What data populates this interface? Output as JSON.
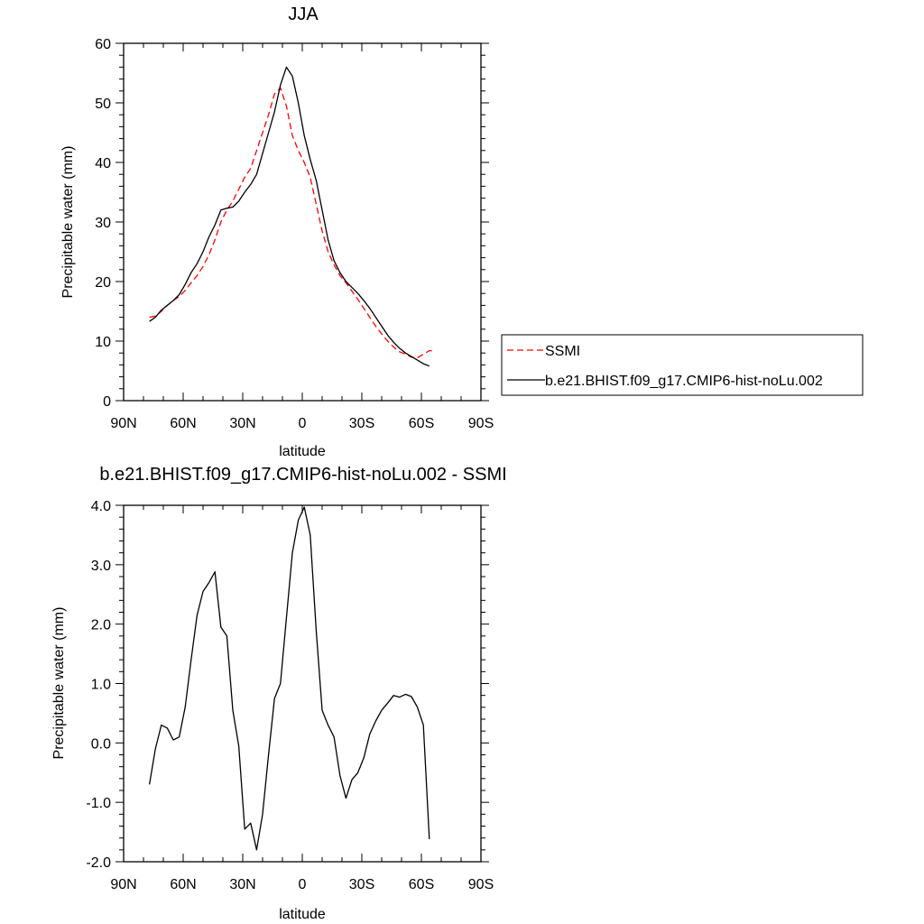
{
  "chart_data": [
    {
      "type": "line",
      "title": "JJA",
      "xlabel": "latitude",
      "ylabel": "Precipitable water (mm)",
      "xlim": [
        90,
        -90
      ],
      "ylim": [
        0,
        60
      ],
      "x_ticks": [
        90,
        60,
        30,
        0,
        -30,
        -60,
        -90
      ],
      "x_tick_labels": [
        "90N",
        "60N",
        "30N",
        "0",
        "30S",
        "60S",
        "90S"
      ],
      "y_ticks": [
        0,
        10,
        20,
        30,
        40,
        50,
        60
      ],
      "y_tick_labels": [
        "0",
        "10",
        "20",
        "30",
        "40",
        "50",
        "60"
      ],
      "grid": false,
      "legend_position": "right",
      "series": [
        {
          "name": "SSMI",
          "color": "#ff0000",
          "dash": "dashed",
          "x": [
            77,
            74,
            71,
            68,
            65,
            62,
            59,
            56,
            53,
            50,
            47,
            44,
            41,
            38,
            35,
            32,
            29,
            26,
            23,
            20,
            17,
            14,
            11,
            8,
            5,
            2,
            -1,
            -4,
            -7,
            -10,
            -13,
            -16,
            -19,
            -22,
            -25,
            -28,
            -31,
            -34,
            -37,
            -40,
            -43,
            -46,
            -49,
            -52,
            -55,
            -58,
            -61,
            -64,
            -67
          ],
          "y": [
            14.0,
            14.2,
            15.0,
            16.0,
            16.8,
            17.5,
            18.5,
            19.8,
            21.0,
            22.5,
            24.5,
            27.0,
            30.0,
            32.0,
            33.5,
            35.5,
            37.5,
            39.0,
            42.0,
            45.0,
            48.0,
            51.5,
            52.5,
            49.5,
            44.5,
            42.0,
            40.0,
            37.5,
            33.0,
            28.5,
            25.0,
            22.8,
            21.0,
            19.8,
            18.4,
            17.0,
            15.5,
            14.0,
            12.5,
            11.2,
            10.0,
            9.0,
            8.2,
            7.8,
            7.3,
            7.2,
            7.8,
            8.4,
            8.4
          ]
        },
        {
          "name": "b.e21.BHIST.f09_g17.CMIP6-hist-noLu.002",
          "color": "#000000",
          "dash": "solid",
          "x": [
            77,
            74,
            71,
            68,
            65,
            62,
            59,
            56,
            53,
            50,
            47,
            44,
            41,
            38,
            35,
            32,
            29,
            26,
            23,
            20,
            17,
            14,
            11,
            8,
            5,
            2,
            -1,
            -4,
            -7,
            -10,
            -13,
            -16,
            -19,
            -22,
            -25,
            -28,
            -31,
            -34,
            -37,
            -40,
            -43,
            -46,
            -49,
            -52,
            -55,
            -58,
            -61,
            -64
          ],
          "y": [
            13.3,
            14.0,
            15.2,
            16.0,
            16.8,
            17.8,
            19.5,
            21.5,
            23.0,
            25.0,
            27.5,
            29.5,
            32.0,
            32.3,
            32.5,
            33.5,
            35.0,
            36.3,
            38.0,
            41.5,
            45.0,
            48.5,
            53.0,
            56.0,
            54.5,
            50.0,
            44.5,
            40.5,
            37.0,
            32.0,
            27.0,
            23.5,
            21.5,
            20.0,
            19.0,
            18.0,
            16.8,
            15.5,
            14.0,
            12.5,
            11.0,
            9.8,
            8.8,
            8.0,
            7.4,
            6.8,
            6.2,
            5.8
          ]
        }
      ]
    },
    {
      "type": "line",
      "title": "b.e21.BHIST.f09_g17.CMIP6-hist-noLu.002 - SSMI",
      "xlabel": "latitude",
      "ylabel": "Precipitable water (mm)",
      "xlim": [
        90,
        -90
      ],
      "ylim": [
        -2,
        4
      ],
      "x_ticks": [
        90,
        60,
        30,
        0,
        -30,
        -60,
        -90
      ],
      "x_tick_labels": [
        "90N",
        "60N",
        "30N",
        "0",
        "30S",
        "60S",
        "90S"
      ],
      "y_ticks": [
        -2,
        -1,
        0,
        1,
        2,
        3,
        4
      ],
      "y_tick_labels": [
        "-2.0",
        "-1.0",
        "0.0",
        "1.0",
        "2.0",
        "3.0",
        "4.0"
      ],
      "grid": false,
      "series": [
        {
          "color": "#000000",
          "dash": "solid",
          "x": [
            77,
            74,
            71,
            68,
            65,
            62,
            59,
            56,
            53,
            50,
            47,
            44,
            41,
            38,
            35,
            32,
            29,
            26,
            23,
            20,
            17,
            14,
            11,
            8,
            5,
            2,
            -1,
            -4,
            -7,
            -10,
            -13,
            -16,
            -19,
            -22,
            -25,
            -28,
            -31,
            -34,
            -37,
            -40,
            -43,
            -46,
            -49,
            -52,
            -55,
            -58,
            -61,
            -64
          ],
          "y": [
            -0.7,
            -0.1,
            0.3,
            0.25,
            0.05,
            0.1,
            0.6,
            1.4,
            2.15,
            2.55,
            2.7,
            2.88,
            1.95,
            1.8,
            0.55,
            -0.05,
            -1.45,
            -1.35,
            -1.8,
            -1.2,
            -0.2,
            0.75,
            1.0,
            2.1,
            3.2,
            3.75,
            3.97,
            3.5,
            1.9,
            0.55,
            0.3,
            0.1,
            -0.55,
            -0.93,
            -0.62,
            -0.5,
            -0.25,
            0.15,
            0.37,
            0.55,
            0.67,
            0.8,
            0.77,
            0.82,
            0.78,
            0.6,
            0.3,
            -1.62
          ]
        }
      ]
    }
  ]
}
